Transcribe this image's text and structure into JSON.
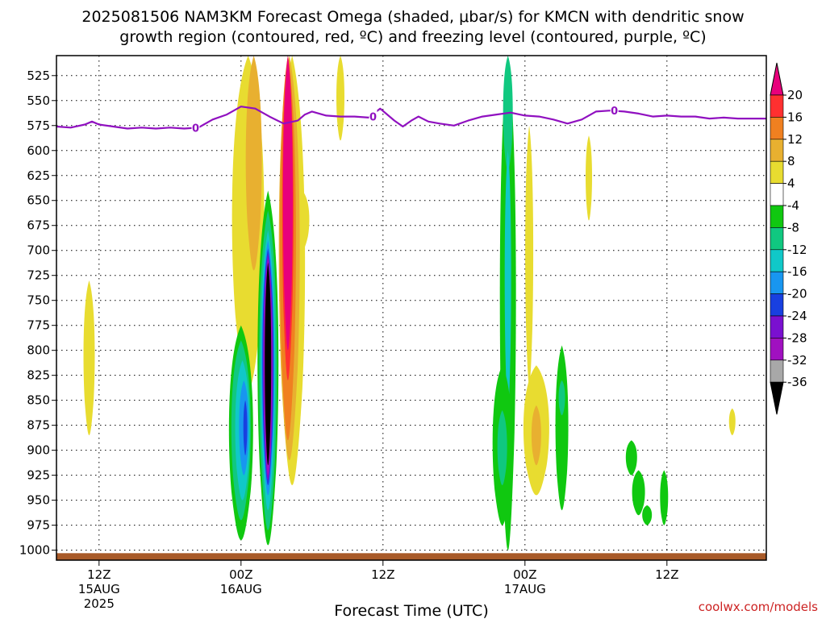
{
  "chart_data": {
    "type": "heatmap",
    "title_line1": "2025081506 NAM3KM Forecast Omega (shaded, μbar/s) for KMCN with dendritic snow",
    "title_line2": "growth region (contoured, red, ºC) and freezing level (contoured, purple, ºC)",
    "xlabel": "Forecast Time (UTC)",
    "credit": "coolwx.com/models",
    "y_axis": {
      "label_values": [
        525,
        550,
        575,
        600,
        625,
        650,
        675,
        700,
        725,
        750,
        775,
        800,
        825,
        850,
        875,
        900,
        925,
        950,
        975,
        1000
      ],
      "range_hpa": [
        505,
        1010
      ],
      "inverted": true
    },
    "x_axis": {
      "range_hours": [
        3,
        53
      ],
      "ticks": [
        {
          "hour": 6,
          "label": "12Z",
          "date": "15AUG",
          "year": "2025"
        },
        {
          "hour": 16,
          "label": "00Z",
          "date": "16AUG",
          "year": ""
        },
        {
          "hour": 26,
          "label": "12Z",
          "date": "",
          "year": ""
        },
        {
          "hour": 36,
          "label": "00Z",
          "date": "17AUG",
          "year": ""
        },
        {
          "hour": 46,
          "label": "12Z",
          "date": "",
          "year": ""
        }
      ]
    },
    "colorbar": {
      "labels": [
        "20",
        "16",
        "12",
        "8",
        "4",
        "-4",
        "-8",
        "-12",
        "-16",
        "-20",
        "-24",
        "-28",
        "-32",
        "-36"
      ],
      "colors": [
        "#e8007c",
        "#ff3030",
        "#f08020",
        "#e8b030",
        "#e8dc30",
        "#ffffff",
        "#10c810",
        "#10c880",
        "#10c8c8",
        "#1896f0",
        "#1840e0",
        "#7a10d0",
        "#a010c0",
        "#a8a8a8",
        "#000000"
      ]
    },
    "freezing_level": {
      "color": "#9010c0",
      "label": "0",
      "points": [
        [
          3,
          576
        ],
        [
          4,
          577
        ],
        [
          5,
          574
        ],
        [
          5.5,
          571
        ],
        [
          6,
          574
        ],
        [
          7,
          576
        ],
        [
          8,
          578
        ],
        [
          9,
          577
        ],
        [
          10,
          578
        ],
        [
          11,
          577
        ],
        [
          12,
          578
        ],
        [
          13,
          577
        ],
        [
          14,
          569
        ],
        [
          15,
          564
        ],
        [
          16,
          556
        ],
        [
          17,
          558
        ],
        [
          18,
          566
        ],
        [
          19,
          573
        ],
        [
          20,
          570
        ],
        [
          20.5,
          564
        ],
        [
          21,
          561
        ],
        [
          22,
          565
        ],
        [
          23,
          566
        ],
        [
          24,
          566
        ],
        [
          25,
          567
        ],
        [
          25.8,
          558
        ],
        [
          26.8,
          570
        ],
        [
          27.4,
          576
        ],
        [
          28,
          570
        ],
        [
          28.5,
          566
        ],
        [
          29.2,
          571
        ],
        [
          30,
          573
        ],
        [
          31,
          575
        ],
        [
          32,
          570
        ],
        [
          33,
          566
        ],
        [
          34,
          564
        ],
        [
          35,
          562
        ],
        [
          36,
          565
        ],
        [
          37,
          566
        ],
        [
          38,
          569
        ],
        [
          39,
          573
        ],
        [
          39.5,
          571
        ],
        [
          40,
          569
        ],
        [
          41,
          561
        ],
        [
          42,
          560
        ],
        [
          43,
          561
        ],
        [
          44,
          563
        ],
        [
          45,
          566
        ],
        [
          46,
          565
        ],
        [
          47,
          566
        ],
        [
          48,
          566
        ],
        [
          49,
          568
        ],
        [
          50,
          567
        ],
        [
          51,
          568
        ],
        [
          52,
          568
        ],
        [
          53,
          568
        ]
      ],
      "labels_at": [
        [
          12.8,
          577
        ],
        [
          25.3,
          566
        ],
        [
          42.3,
          560
        ]
      ]
    },
    "omega_regions": [
      {
        "value": 6,
        "color": "#e8dc30",
        "hour": 5.3,
        "p_top": 730,
        "p_bottom": 885,
        "half_width_h": 0.35
      },
      {
        "value": 6,
        "color": "#e8dc30",
        "hour": 16.5,
        "p_top": 505,
        "p_bottom": 840,
        "half_width_h": 1.0
      },
      {
        "value": 10,
        "color": "#e8b030",
        "hour": 16.9,
        "p_top": 505,
        "p_bottom": 720,
        "half_width_h": 0.5
      },
      {
        "value": 6,
        "color": "#e8dc30",
        "hour": 20.3,
        "p_top": 640,
        "p_bottom": 700,
        "half_width_h": 0.45
      },
      {
        "value": 6,
        "color": "#e8dc30",
        "hour": 23,
        "p_top": 505,
        "p_bottom": 590,
        "half_width_h": 0.25
      },
      {
        "value": 6,
        "color": "#e8dc30",
        "hour": 19.6,
        "p_top": 505,
        "p_bottom": 935,
        "half_width_h": 0.8
      },
      {
        "value": 10,
        "color": "#e8b030",
        "hour": 19.4,
        "p_top": 505,
        "p_bottom": 910,
        "half_width_h": 0.65
      },
      {
        "value": 14,
        "color": "#f08020",
        "hour": 19.3,
        "p_top": 505,
        "p_bottom": 890,
        "half_width_h": 0.5
      },
      {
        "value": 18,
        "color": "#ff3030",
        "hour": 19.3,
        "p_top": 505,
        "p_bottom": 830,
        "half_width_h": 0.35
      },
      {
        "value": 22,
        "color": "#e8007c",
        "hour": 19.3,
        "p_top": 505,
        "p_bottom": 800,
        "half_width_h": 0.3
      },
      {
        "value": -6,
        "color": "#10c810",
        "hour": 16,
        "p_top": 775,
        "p_bottom": 990,
        "half_width_h": 0.75
      },
      {
        "value": -10,
        "color": "#10c880",
        "hour": 16,
        "p_top": 790,
        "p_bottom": 970,
        "half_width_h": 0.6
      },
      {
        "value": -14,
        "color": "#10c8c8",
        "hour": 16.1,
        "p_top": 810,
        "p_bottom": 950,
        "half_width_h": 0.45
      },
      {
        "value": -18,
        "color": "#1896f0",
        "hour": 16.2,
        "p_top": 830,
        "p_bottom": 925,
        "half_width_h": 0.3
      },
      {
        "value": -22,
        "color": "#1840e0",
        "hour": 16.3,
        "p_top": 850,
        "p_bottom": 905,
        "half_width_h": 0.12
      },
      {
        "value": -6,
        "color": "#10c810",
        "hour": 17.9,
        "p_top": 640,
        "p_bottom": 995,
        "half_width_h": 0.65
      },
      {
        "value": -10,
        "color": "#10c880",
        "hour": 17.9,
        "p_top": 660,
        "p_bottom": 980,
        "half_width_h": 0.55
      },
      {
        "value": -14,
        "color": "#10c8c8",
        "hour": 17.9,
        "p_top": 680,
        "p_bottom": 960,
        "half_width_h": 0.45
      },
      {
        "value": -18,
        "color": "#1896f0",
        "hour": 17.9,
        "p_top": 690,
        "p_bottom": 945,
        "half_width_h": 0.4
      },
      {
        "value": -22,
        "color": "#1840e0",
        "hour": 17.9,
        "p_top": 698,
        "p_bottom": 935,
        "half_width_h": 0.35
      },
      {
        "value": -26,
        "color": "#7a10d0",
        "hour": 17.9,
        "p_top": 703,
        "p_bottom": 930,
        "half_width_h": 0.3
      },
      {
        "value": -30,
        "color": "#a010c0",
        "hour": 17.9,
        "p_top": 708,
        "p_bottom": 925,
        "half_width_h": 0.25
      },
      {
        "value": -38,
        "color": "#000000",
        "hour": 17.9,
        "p_top": 712,
        "p_bottom": 915,
        "half_width_h": 0.2
      },
      {
        "value": -6,
        "color": "#10c810",
        "hour": 34.8,
        "p_top": 505,
        "p_bottom": 1000,
        "half_width_h": 0.5
      },
      {
        "value": -10,
        "color": "#10c880",
        "hour": 34.8,
        "p_top": 505,
        "p_bottom": 620,
        "half_width_h": 0.3
      },
      {
        "value": -14,
        "color": "#10c8c8",
        "hour": 34.8,
        "p_top": 600,
        "p_bottom": 860,
        "half_width_h": 0.2
      },
      {
        "value": -6,
        "color": "#10c810",
        "hour": 34.4,
        "p_top": 815,
        "p_bottom": 975,
        "half_width_h": 0.6
      },
      {
        "value": -10,
        "color": "#10c880",
        "hour": 34.4,
        "p_top": 860,
        "p_bottom": 935,
        "half_width_h": 0.3
      },
      {
        "value": 6,
        "color": "#e8dc30",
        "hour": 36.3,
        "p_top": 575,
        "p_bottom": 835,
        "half_width_h": 0.25
      },
      {
        "value": 6,
        "color": "#e8dc30",
        "hour": 36.8,
        "p_top": 815,
        "p_bottom": 945,
        "half_width_h": 0.8
      },
      {
        "value": 10,
        "color": "#e8b030",
        "hour": 36.8,
        "p_top": 855,
        "p_bottom": 915,
        "half_width_h": 0.3
      },
      {
        "value": -6,
        "color": "#10c810",
        "hour": 38.6,
        "p_top": 795,
        "p_bottom": 960,
        "half_width_h": 0.4
      },
      {
        "value": -10,
        "color": "#10c880",
        "hour": 38.6,
        "p_top": 830,
        "p_bottom": 865,
        "half_width_h": 0.2
      },
      {
        "value": 6,
        "color": "#e8dc30",
        "hour": 40.5,
        "p_top": 585,
        "p_bottom": 670,
        "half_width_h": 0.2
      },
      {
        "value": -6,
        "color": "#10c810",
        "hour": 43.5,
        "p_top": 890,
        "p_bottom": 925,
        "half_width_h": 0.35
      },
      {
        "value": -6,
        "color": "#10c810",
        "hour": 44,
        "p_top": 920,
        "p_bottom": 965,
        "half_width_h": 0.4
      },
      {
        "value": -6,
        "color": "#10c810",
        "hour": 44.6,
        "p_top": 955,
        "p_bottom": 975,
        "half_width_h": 0.3
      },
      {
        "value": -6,
        "color": "#10c810",
        "hour": 45.8,
        "p_top": 920,
        "p_bottom": 975,
        "half_width_h": 0.25
      },
      {
        "value": 6,
        "color": "#e8dc30",
        "hour": 50.6,
        "p_top": 858,
        "p_bottom": 885,
        "half_width_h": 0.2
      }
    ],
    "terrain": {
      "color": "#a85a28",
      "top_hpa": 1003
    }
  }
}
